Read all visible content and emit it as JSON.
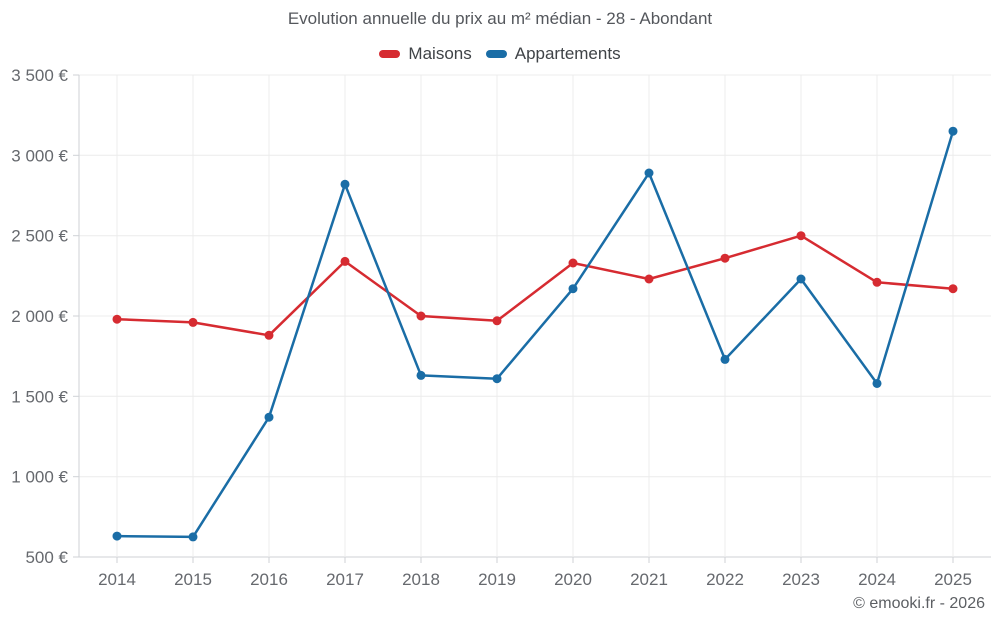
{
  "header": {
    "title": "Evolution annuelle du prix au m² médian - 28 - Abondant",
    "footer": "© emooki.fr - 2026"
  },
  "chart_data": {
    "type": "line",
    "title": "Evolution annuelle du prix au m² médian - 28 - Abondant",
    "xlabel": "",
    "ylabel": "",
    "categories": [
      "2014",
      "2015",
      "2016",
      "2017",
      "2018",
      "2019",
      "2020",
      "2021",
      "2022",
      "2023",
      "2024",
      "2025"
    ],
    "series": [
      {
        "name": "Maisons",
        "color": "#d62b31",
        "values": [
          1980,
          1960,
          1880,
          2340,
          2000,
          1970,
          2330,
          2230,
          2360,
          2500,
          2210,
          2170
        ]
      },
      {
        "name": "Appartements",
        "color": "#1a6da6",
        "values": [
          630,
          625,
          1370,
          2820,
          1630,
          1610,
          2170,
          2890,
          1730,
          2230,
          1580,
          3150
        ]
      }
    ],
    "ylim": [
      500,
      3500
    ],
    "y_ticks": [
      {
        "value": 500,
        "label": "500 €"
      },
      {
        "value": 1000,
        "label": "1 000 €"
      },
      {
        "value": 1500,
        "label": "1 500 €"
      },
      {
        "value": 2000,
        "label": "2 000 €"
      },
      {
        "value": 2500,
        "label": "2 500 €"
      },
      {
        "value": 3000,
        "label": "3 000 €"
      },
      {
        "value": 3500,
        "label": "3 500 €"
      }
    ],
    "grid": true,
    "legend_position": "top",
    "colors": {
      "grid": "#ececec",
      "axis": "#cfd2d6",
      "tick_text": "#66696e"
    }
  }
}
